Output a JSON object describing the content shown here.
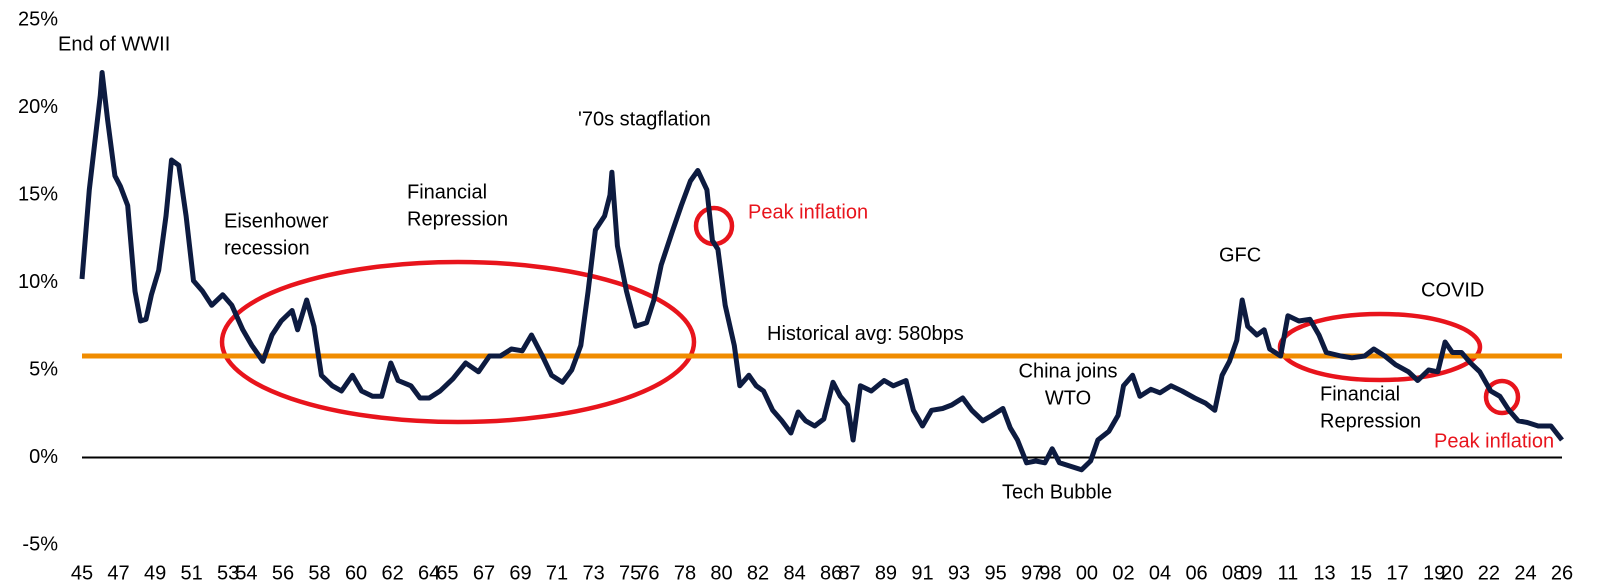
{
  "chart_data": {
    "type": "line",
    "color": "#0d1b40",
    "x": [
      1945.0,
      1945.4,
      1946.0,
      1946.1,
      1946.4,
      1946.8,
      1947.1,
      1947.5,
      1947.9,
      1948.2,
      1948.5,
      1948.8,
      1949.2,
      1949.6,
      1949.9,
      1950.3,
      1950.7,
      1951.1,
      1951.6,
      1952.1,
      1952.7,
      1953.2,
      1953.8,
      1954.3,
      1954.9,
      1955.4,
      1955.9,
      1956.5,
      1956.8,
      1957.3,
      1957.7,
      1958.1,
      1958.7,
      1959.2,
      1959.8,
      1960.3,
      1960.9,
      1961.4,
      1961.9,
      1962.3,
      1963.0,
      1963.5,
      1964.0,
      1964.6,
      1965.3,
      1966.0,
      1966.7,
      1967.3,
      1967.9,
      1968.5,
      1969.1,
      1969.6,
      1970.2,
      1970.7,
      1971.3,
      1971.8,
      1972.3,
      1972.7,
      1973.1,
      1973.6,
      1973.9,
      1974.0,
      1974.3,
      1974.8,
      1975.3,
      1975.9,
      1976.3,
      1976.7,
      1977.3,
      1977.8,
      1978.3,
      1978.7,
      1979.2,
      1979.5,
      1979.8,
      1980.2,
      1980.7,
      1981.0,
      1981.5,
      1981.9,
      1982.3,
      1982.8,
      1983.3,
      1983.8,
      1984.2,
      1984.6,
      1985.1,
      1985.6,
      1986.1,
      1986.5,
      1986.9,
      1987.2,
      1987.6,
      1988.2,
      1988.9,
      1989.4,
      1990.1,
      1990.5,
      1991.0,
      1991.5,
      1992.1,
      1992.6,
      1993.2,
      1993.7,
      1994.3,
      1994.8,
      1995.4,
      1995.8,
      1996.2,
      1996.7,
      1997.2,
      1997.7,
      1998.1,
      1998.5,
      1999.1,
      1999.7,
      2000.2,
      2000.6,
      2001.2,
      2001.7,
      2002.0,
      2002.5,
      2002.9,
      2003.5,
      2004.0,
      2004.6,
      2005.2,
      2005.9,
      2006.5,
      2007.0,
      2007.4,
      2007.8,
      2008.2,
      2008.5,
      2008.8,
      2009.3,
      2009.7,
      2010.0,
      2010.6,
      2011.0,
      2011.6,
      2012.2,
      2012.7,
      2013.1,
      2013.9,
      2014.5,
      2015.2,
      2015.7,
      2016.3,
      2016.9,
      2017.6,
      2018.1,
      2018.7,
      2019.2,
      2019.6,
      2020.0,
      2020.5,
      2021.0,
      2021.5,
      2022.1,
      2022.6,
      2023.1,
      2023.6,
      2024.1,
      2024.7,
      2025.4,
      2026.0
    ],
    "values": [
      10.2,
      15.3,
      20.7,
      22,
      19.3,
      16.1,
      15.5,
      14.4,
      9.5,
      7.8,
      7.9,
      9.3,
      10.7,
      13.8,
      17,
      16.7,
      13.8,
      10.1,
      9.5,
      8.7,
      9.3,
      8.7,
      7.3,
      6.4,
      5.5,
      7,
      7.8,
      8.4,
      7.3,
      9,
      7.5,
      4.7,
      4.1,
      3.8,
      4.7,
      3.8,
      3.5,
      3.5,
      5.4,
      4.4,
      4.1,
      3.4,
      3.4,
      3.8,
      4.5,
      5.4,
      4.9,
      5.8,
      5.8,
      6.2,
      6.1,
      7,
      5.8,
      4.7,
      4.3,
      5,
      6.4,
      9.5,
      13,
      13.8,
      15,
      16.3,
      12.1,
      9.5,
      7.5,
      7.7,
      9,
      11,
      12.9,
      14.4,
      15.8,
      16.4,
      15.3,
      12.4,
      11.9,
      8.7,
      6.4,
      4.1,
      4.7,
      4.1,
      3.8,
      2.7,
      2.1,
      1.4,
      2.6,
      2.1,
      1.8,
      2.2,
      4.3,
      3.5,
      3,
      1,
      4.1,
      3.8,
      4.4,
      4.1,
      4.4,
      2.7,
      1.8,
      2.7,
      2.8,
      3,
      3.4,
      2.7,
      2.1,
      2.4,
      2.8,
      1.7,
      1,
      -0.3,
      -0.2,
      -0.3,
      0.5,
      -0.3,
      -0.5,
      -0.7,
      -0.2,
      1,
      1.5,
      2.4,
      4.1,
      4.7,
      3.5,
      3.9,
      3.7,
      4.1,
      3.8,
      3.4,
      3.1,
      2.7,
      4.7,
      5.5,
      6.7,
      9,
      7.5,
      7,
      7.3,
      6.2,
      5.8,
      8.1,
      7.8,
      7.9,
      7,
      6,
      5.8,
      5.7,
      5.8,
      6.2,
      5.8,
      5.3,
      4.9,
      4.4,
      5,
      4.9,
      6.6,
      6,
      6,
      5.4,
      4.9,
      3.8,
      3.5,
      2.7,
      2.1,
      2,
      1.8,
      1.8,
      1
    ],
    "xlim": [
      1945,
      2026
    ],
    "xticks": [
      {
        "value": 1945,
        "label": "45"
      },
      {
        "value": 1947,
        "label": "47"
      },
      {
        "value": 1949,
        "label": "49"
      },
      {
        "value": 1951,
        "label": "51"
      },
      {
        "value": 1953,
        "label": "53"
      },
      {
        "value": 1954,
        "label": "54"
      },
      {
        "value": 1956,
        "label": "56"
      },
      {
        "value": 1958,
        "label": "58"
      },
      {
        "value": 1960,
        "label": "60"
      },
      {
        "value": 1962,
        "label": "62"
      },
      {
        "value": 1964,
        "label": "64"
      },
      {
        "value": 1965,
        "label": "65"
      },
      {
        "value": 1967,
        "label": "67"
      },
      {
        "value": 1969,
        "label": "69"
      },
      {
        "value": 1971,
        "label": "71"
      },
      {
        "value": 1973,
        "label": "73"
      },
      {
        "value": 1975,
        "label": "75"
      },
      {
        "value": 1976,
        "label": "76"
      },
      {
        "value": 1978,
        "label": "78"
      },
      {
        "value": 1980,
        "label": "80"
      },
      {
        "value": 1982,
        "label": "82"
      },
      {
        "value": 1984,
        "label": "84"
      },
      {
        "value": 1986,
        "label": "86"
      },
      {
        "value": 1987,
        "label": "87"
      },
      {
        "value": 1989,
        "label": "89"
      },
      {
        "value": 1991,
        "label": "91"
      },
      {
        "value": 1993,
        "label": "93"
      },
      {
        "value": 1995,
        "label": "95"
      },
      {
        "value": 1997,
        "label": "97"
      },
      {
        "value": 1998,
        "label": "98"
      },
      {
        "value": 2000,
        "label": "00"
      },
      {
        "value": 2002,
        "label": "02"
      },
      {
        "value": 2004,
        "label": "04"
      },
      {
        "value": 2006,
        "label": "06"
      },
      {
        "value": 2008,
        "label": "08"
      },
      {
        "value": 2009,
        "label": "09"
      },
      {
        "value": 2011,
        "label": "11"
      },
      {
        "value": 2013,
        "label": "13"
      },
      {
        "value": 2015,
        "label": "15"
      },
      {
        "value": 2017,
        "label": "17"
      },
      {
        "value": 2019,
        "label": "19"
      },
      {
        "value": 2020,
        "label": "20"
      },
      {
        "value": 2022,
        "label": "22"
      },
      {
        "value": 2024,
        "label": "24"
      },
      {
        "value": 2026,
        "label": "26"
      }
    ],
    "ylim": [
      -5,
      25
    ],
    "yticks": [
      {
        "value": -5,
        "label": "-5%"
      },
      {
        "value": 0,
        "label": "0%"
      },
      {
        "value": 5,
        "label": "5%"
      },
      {
        "value": 10,
        "label": "10%"
      },
      {
        "value": 15,
        "label": "15%"
      },
      {
        "value": 20,
        "label": "20%"
      },
      {
        "value": 25,
        "label": "25%"
      }
    ],
    "grid": false,
    "reference_line": {
      "value": 5.8,
      "label": "Historical avg: 580bps",
      "color": "#f08c00"
    },
    "annotations": [
      {
        "lines": [
          "End of WWII"
        ]
      },
      {
        "lines": [
          "Eisenhower",
          "recession"
        ]
      },
      {
        "lines": [
          "Financial",
          "Repression"
        ]
      },
      {
        "lines": [
          "'70s stagflation"
        ]
      },
      {
        "lines": [
          "Peak inflation"
        ],
        "color": "#e8141c"
      },
      {
        "lines": [
          "China joins",
          "WTO"
        ]
      },
      {
        "lines": [
          "Tech Bubble"
        ]
      },
      {
        "lines": [
          "GFC"
        ]
      },
      {
        "lines": [
          "COVID"
        ]
      },
      {
        "lines": [
          "Financial",
          "Repression"
        ]
      },
      {
        "lines": [
          "Peak inflation"
        ],
        "color": "#e8141c"
      }
    ]
  }
}
